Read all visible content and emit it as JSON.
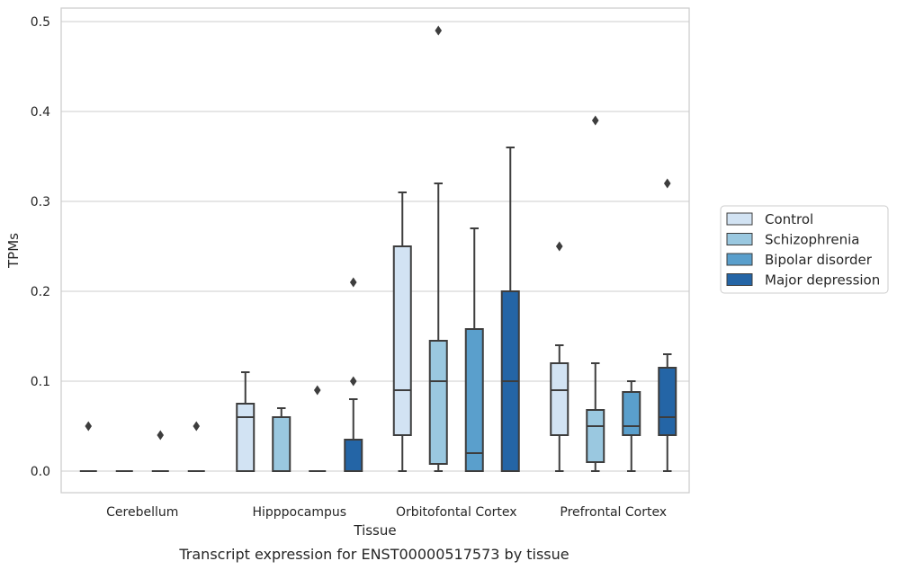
{
  "chart_data": {
    "type": "box",
    "title": "",
    "caption": "Transcript expression for ENST00000517573 by tissue",
    "xlabel": "Tissue",
    "ylabel": "TPMs",
    "ylim": [
      -0.024,
      0.515
    ],
    "yticks": [
      0.0,
      0.1,
      0.2,
      0.3,
      0.4,
      0.5
    ],
    "ytick_labels": [
      "0.0",
      "0.1",
      "0.2",
      "0.3",
      "0.4",
      "0.5"
    ],
    "categories": [
      "Cerebellum",
      "Hipppocampus",
      "Orbitofontal Cortex",
      "Prefrontal Cortex"
    ],
    "grid": "horizontal",
    "legend_position": "right",
    "series": [
      {
        "name": "Control",
        "color": "#d2e3f3",
        "boxes": [
          {
            "q1": 0.0,
            "median": 0.0,
            "q3": 0.0,
            "whisker_low": 0.0,
            "whisker_high": 0.0,
            "outliers": [
              0.05
            ]
          },
          {
            "q1": 0.0,
            "median": 0.06,
            "q3": 0.075,
            "whisker_low": 0.0,
            "whisker_high": 0.11,
            "outliers": []
          },
          {
            "q1": 0.04,
            "median": 0.09,
            "q3": 0.25,
            "whisker_low": 0.0,
            "whisker_high": 0.31,
            "outliers": []
          },
          {
            "q1": 0.04,
            "median": 0.09,
            "q3": 0.12,
            "whisker_low": 0.0,
            "whisker_high": 0.14,
            "outliers": [
              0.25
            ]
          }
        ]
      },
      {
        "name": "Schizophrenia",
        "color": "#9ac8e0",
        "boxes": [
          {
            "q1": 0.0,
            "median": 0.0,
            "q3": 0.0,
            "whisker_low": 0.0,
            "whisker_high": 0.0,
            "outliers": []
          },
          {
            "q1": 0.0,
            "median": 0.06,
            "q3": 0.06,
            "whisker_low": 0.0,
            "whisker_high": 0.07,
            "outliers": []
          },
          {
            "q1": 0.008,
            "median": 0.1,
            "q3": 0.145,
            "whisker_low": 0.0,
            "whisker_high": 0.32,
            "outliers": [
              0.49
            ]
          },
          {
            "q1": 0.01,
            "median": 0.05,
            "q3": 0.068,
            "whisker_low": 0.0,
            "whisker_high": 0.12,
            "outliers": [
              0.39
            ]
          }
        ]
      },
      {
        "name": "Bipolar disorder",
        "color": "#5a9fcc",
        "boxes": [
          {
            "q1": 0.0,
            "median": 0.0,
            "q3": 0.0,
            "whisker_low": 0.0,
            "whisker_high": 0.0,
            "outliers": [
              0.04
            ]
          },
          {
            "q1": 0.0,
            "median": 0.0,
            "q3": 0.0,
            "whisker_low": 0.0,
            "whisker_high": 0.0,
            "outliers": [
              0.09
            ]
          },
          {
            "q1": 0.0,
            "median": 0.02,
            "q3": 0.158,
            "whisker_low": 0.0,
            "whisker_high": 0.27,
            "outliers": []
          },
          {
            "q1": 0.04,
            "median": 0.05,
            "q3": 0.088,
            "whisker_low": 0.0,
            "whisker_high": 0.1,
            "outliers": []
          }
        ]
      },
      {
        "name": "Major depression",
        "color": "#2465a6",
        "boxes": [
          {
            "q1": 0.0,
            "median": 0.0,
            "q3": 0.0,
            "whisker_low": 0.0,
            "whisker_high": 0.0,
            "outliers": [
              0.05
            ]
          },
          {
            "q1": 0.0,
            "median": 0.0,
            "q3": 0.035,
            "whisker_low": 0.0,
            "whisker_high": 0.08,
            "outliers": [
              0.1,
              0.21
            ]
          },
          {
            "q1": 0.0,
            "median": 0.1,
            "q3": 0.2,
            "whisker_low": 0.0,
            "whisker_high": 0.36,
            "outliers": []
          },
          {
            "q1": 0.04,
            "median": 0.06,
            "q3": 0.115,
            "whisker_low": 0.0,
            "whisker_high": 0.13,
            "outliers": [
              0.32
            ]
          }
        ]
      }
    ]
  }
}
